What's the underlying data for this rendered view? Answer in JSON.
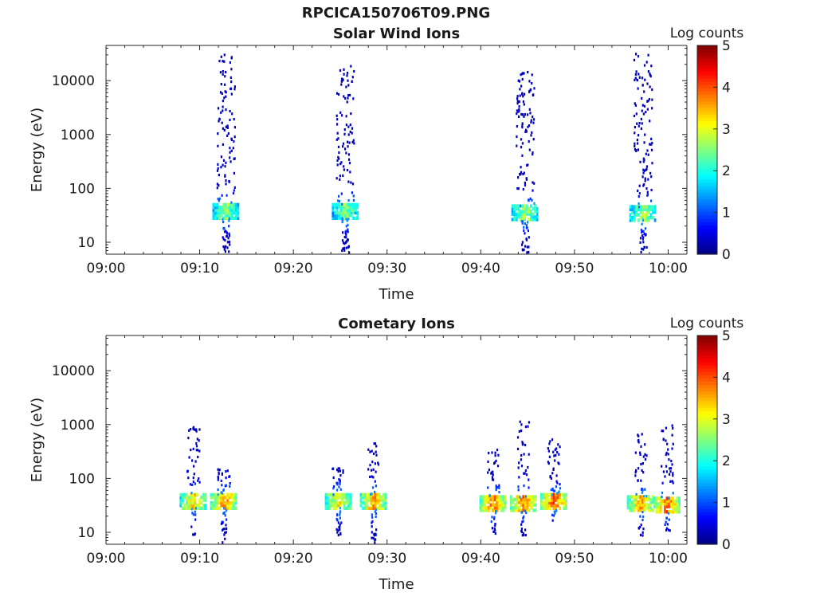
{
  "figure_title": "RPCICA150706T09.PNG",
  "chart_data": [
    {
      "type": "heatmap",
      "title": "Solar Wind Ions",
      "xlabel": "Time",
      "ylabel": "Energy (eV)",
      "x_ticks": [
        "09:00",
        "09:10",
        "09:20",
        "09:30",
        "09:40",
        "09:50",
        "10:00"
      ],
      "y_ticks": [
        "10",
        "100",
        "1000",
        "10000"
      ],
      "y_scale": "log",
      "ylim": [
        6,
        45000
      ],
      "colorbar": {
        "label": "Log counts",
        "ticks": [
          "0",
          "1",
          "2",
          "3",
          "4",
          "5"
        ],
        "range": [
          0,
          5
        ]
      },
      "bursts": [
        {
          "time": "09:12:45",
          "core_eV": 35,
          "core_log_counts": 2.6,
          "extent_eV": [
            6,
            30000
          ]
        },
        {
          "time": "09:25:30",
          "core_eV": 35,
          "core_log_counts": 2.5,
          "extent_eV": [
            6,
            18000
          ]
        },
        {
          "time": "09:44:40",
          "core_eV": 33,
          "core_log_counts": 2.7,
          "extent_eV": [
            6,
            14000
          ]
        },
        {
          "time": "09:57:15",
          "core_eV": 32,
          "core_log_counts": 2.7,
          "extent_eV": [
            6,
            32000
          ]
        }
      ]
    },
    {
      "type": "heatmap",
      "title": "Cometary Ions",
      "xlabel": "Time",
      "ylabel": "Energy (eV)",
      "x_ticks": [
        "09:00",
        "09:10",
        "09:20",
        "09:30",
        "09:40",
        "09:50",
        "10:00"
      ],
      "y_ticks": [
        "10",
        "100",
        "1000",
        "10000"
      ],
      "y_scale": "log",
      "ylim": [
        6,
        45000
      ],
      "colorbar": {
        "label": "Log counts",
        "ticks": [
          "0",
          "1",
          "2",
          "3",
          "4",
          "5"
        ],
        "range": [
          0,
          5
        ]
      },
      "bursts": [
        {
          "time": "09:09:15",
          "core_eV": 35,
          "core_log_counts": 3.3,
          "extent_eV": [
            6,
            900
          ]
        },
        {
          "time": "09:12:30",
          "core_eV": 35,
          "core_log_counts": 3.7,
          "extent_eV": [
            6,
            150
          ]
        },
        {
          "time": "09:24:45",
          "core_eV": 35,
          "core_log_counts": 3.2,
          "extent_eV": [
            8,
            170
          ]
        },
        {
          "time": "09:28:30",
          "core_eV": 35,
          "core_log_counts": 3.6,
          "extent_eV": [
            6,
            600
          ]
        },
        {
          "time": "09:41:15",
          "core_eV": 32,
          "core_log_counts": 3.8,
          "extent_eV": [
            8,
            420
          ]
        },
        {
          "time": "09:44:30",
          "core_eV": 32,
          "core_log_counts": 3.8,
          "extent_eV": [
            8,
            1100
          ]
        },
        {
          "time": "09:47:45",
          "core_eV": 35,
          "core_log_counts": 4.0,
          "extent_eV": [
            15,
            500
          ]
        },
        {
          "time": "09:57:00",
          "core_eV": 32,
          "core_log_counts": 3.6,
          "extent_eV": [
            8,
            750
          ]
        },
        {
          "time": "09:59:50",
          "core_eV": 30,
          "core_log_counts": 3.9,
          "extent_eV": [
            10,
            950
          ]
        }
      ]
    }
  ]
}
